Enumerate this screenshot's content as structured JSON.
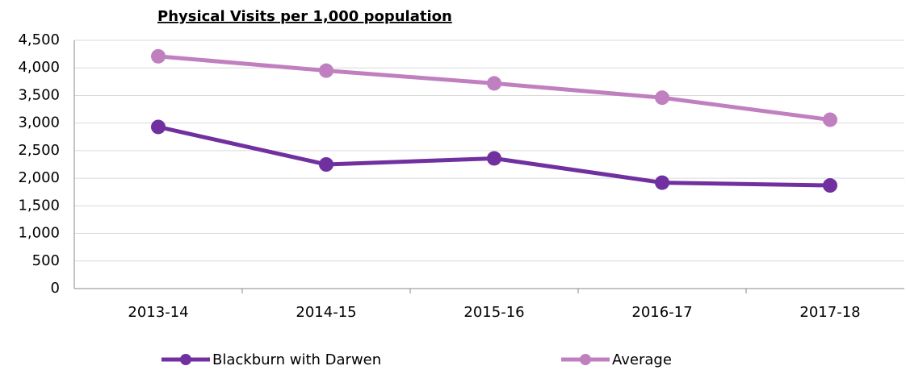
{
  "chart_data": {
    "type": "line",
    "title": "Physical Visits per 1,000 population",
    "categories": [
      "2013-14",
      "2014-15",
      "2015-16",
      "2016-17",
      "2017-18"
    ],
    "series": [
      {
        "name": "Blackburn with Darwen",
        "color": "#7030a0",
        "values": [
          2930,
          2250,
          2360,
          1920,
          1870
        ]
      },
      {
        "name": "Average",
        "color": "#c080c0",
        "values": [
          4210,
          3950,
          3720,
          3460,
          3060
        ]
      }
    ],
    "ylim": [
      0,
      4500
    ],
    "yticks": [
      0,
      500,
      {
        "value": 1000,
        "label": "1,000"
      },
      {
        "value": 1500,
        "label": "1,500"
      },
      {
        "value": 2000,
        "label": "2,000"
      },
      {
        "value": 2500,
        "label": "2,500"
      },
      {
        "value": 3000,
        "label": "3,000"
      },
      {
        "value": 3500,
        "label": "3,500"
      },
      {
        "value": 4000,
        "label": "4,000"
      },
      {
        "value": 4500,
        "label": "4,500"
      }
    ],
    "grid": true,
    "legend": "bottom"
  }
}
